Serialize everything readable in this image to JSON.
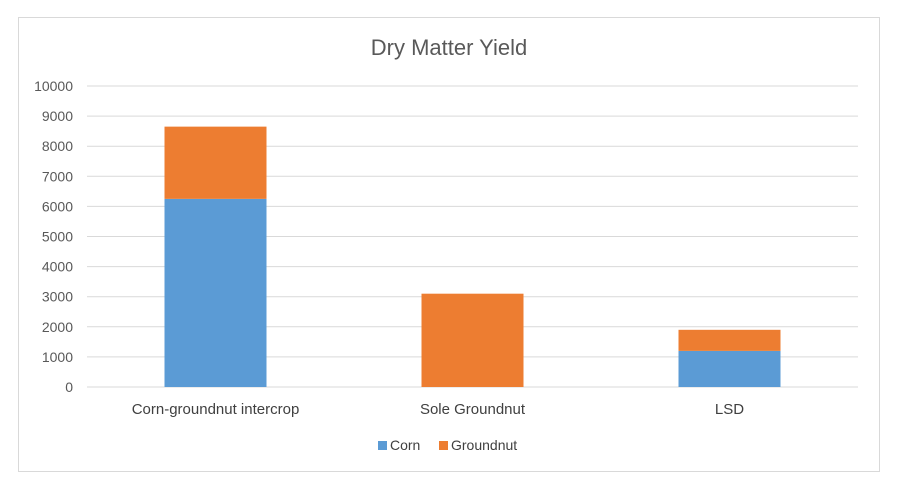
{
  "chart_data": {
    "type": "bar",
    "stacked": true,
    "title": "Dry Matter Yield",
    "xlabel": "",
    "ylabel": "",
    "categories": [
      "Corn-groundnut intercrop",
      "Sole Groundnut",
      "LSD"
    ],
    "series": [
      {
        "name": "Corn",
        "values": [
          6250,
          0,
          1200
        ],
        "color": "#5b9bd5"
      },
      {
        "name": "Groundnut",
        "values": [
          2400,
          3100,
          700
        ],
        "color": "#ed7d31"
      }
    ],
    "ylim": [
      0,
      10000
    ],
    "yticks": [
      0,
      1000,
      2000,
      3000,
      4000,
      5000,
      6000,
      7000,
      8000,
      9000,
      10000
    ],
    "grid": true,
    "legend": "bottom"
  }
}
